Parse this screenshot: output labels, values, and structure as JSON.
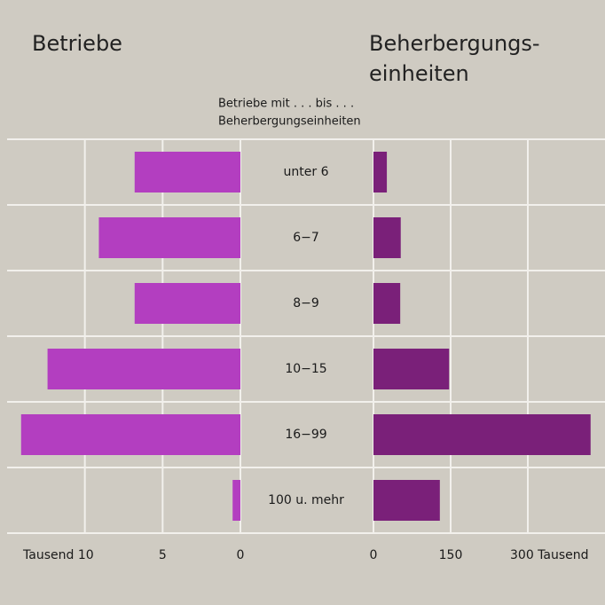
{
  "chart_data": [
    {
      "type": "bar",
      "orientation": "horizontal",
      "reversed": true,
      "title": "Betriebe",
      "subtitle": [
        "Betriebe mit . . . bis . . .",
        "Beherbergungseinheiten"
      ],
      "categories": [
        "unter 6",
        "6−7",
        "8−9",
        "10−15",
        "16−99",
        "100 u. mehr"
      ],
      "values": [
        6.8,
        9.1,
        6.8,
        12.4,
        14.1,
        0.5
      ],
      "color": "#b33ec0",
      "xlim": [
        0,
        15
      ],
      "xticks": [
        {
          "value": 10,
          "label": "Tausend 10"
        },
        5,
        0
      ],
      "grid": true
    },
    {
      "type": "bar",
      "orientation": "horizontal",
      "title": [
        "Beherbergungs-",
        "einheiten"
      ],
      "values": [
        26,
        53,
        52,
        147,
        422,
        129
      ],
      "color": "#7a2079",
      "xlim": [
        0,
        450
      ],
      "xticks": [
        0,
        150,
        {
          "value": 300,
          "label": "300 Tausend"
        }
      ],
      "grid": true
    }
  ]
}
